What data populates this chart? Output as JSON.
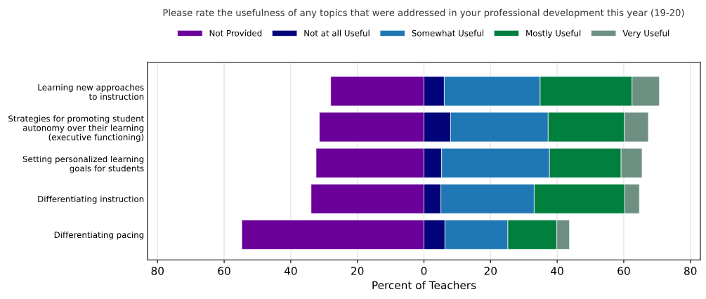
{
  "chart_data": {
    "type": "bar",
    "orientation": "horizontal",
    "stacked": true,
    "title": "Please rate the usefulness of any topics that were addressed in your professional development this year (19-20)",
    "xlabel": "Percent of Teachers",
    "categories": [
      "Learning new approaches\nto instruction",
      "Strategies for promoting student\nautonomy over their learning\n(executive functioning)",
      "Setting personalized learning\ngoals for students",
      "Differentiating instruction",
      "Differentiating pacing"
    ],
    "series": [
      {
        "name": "Not Provided",
        "color": "#6a0099",
        "values": [
          -28,
          -31.4,
          -32.4,
          -33.9,
          -54.7
        ]
      },
      {
        "name": "Not at all Useful",
        "color": "#03037a",
        "values": [
          6.1,
          8.0,
          5.3,
          5.1,
          6.3
        ]
      },
      {
        "name": "Somewhat Useful",
        "color": "#1f78b4",
        "values": [
          28.8,
          29.3,
          32.4,
          28.0,
          18.9
        ]
      },
      {
        "name": "Mostly Useful",
        "color": "#007f3f",
        "values": [
          27.6,
          22.9,
          21.5,
          27.2,
          14.7
        ]
      },
      {
        "name": "Very Useful",
        "color": "#6e9082",
        "values": [
          8.2,
          7.2,
          6.3,
          4.4,
          3.8
        ]
      }
    ],
    "xlim": [
      -83,
      83
    ],
    "xticks": [
      {
        "value": -80,
        "label": "80"
      },
      {
        "value": -60,
        "label": "60"
      },
      {
        "value": -40,
        "label": "40"
      },
      {
        "value": -20,
        "label": "20"
      },
      0,
      20,
      40,
      60,
      80
    ],
    "grid": "x",
    "legend": "top"
  }
}
